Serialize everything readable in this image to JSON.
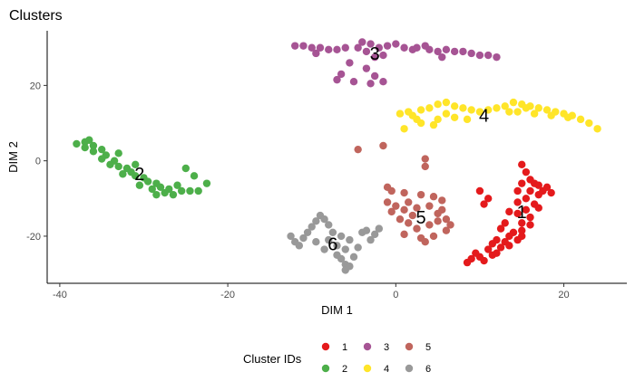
{
  "chart_data": {
    "type": "scatter",
    "title": "Clusters",
    "xlabel": "DIM 1",
    "ylabel": "DIM 2",
    "xlim": [
      -41.5,
      27.5
    ],
    "ylim": [
      -32.5,
      34.5
    ],
    "xticks": [
      -40,
      -20,
      0,
      20
    ],
    "yticks": [
      -20,
      0,
      20
    ],
    "xtick_labels": [
      "-40",
      "-20",
      "0",
      "20"
    ],
    "ytick_labels": [
      "-20",
      "0",
      "20"
    ],
    "grid": false,
    "legend": {
      "title": "Cluster IDs",
      "position": "bottom"
    },
    "clusters": [
      {
        "name": "1",
        "color": "#E41A1C",
        "label_pos": [
          15,
          -13.5
        ],
        "points": [
          [
            15.0,
            -1.0
          ],
          [
            15.5,
            -3.0
          ],
          [
            16.0,
            -5.0
          ],
          [
            17.0,
            -6.5
          ],
          [
            18.0,
            -7.0
          ],
          [
            18.5,
            -8.5
          ],
          [
            17.0,
            -9.0
          ],
          [
            16.0,
            -8.0
          ],
          [
            15.0,
            -6.0
          ],
          [
            14.5,
            -8.0
          ],
          [
            15.5,
            -10.0
          ],
          [
            16.5,
            -11.5
          ],
          [
            17.0,
            -12.5
          ],
          [
            15.5,
            -13.0
          ],
          [
            16.0,
            -15.0
          ],
          [
            15.0,
            -16.5
          ],
          [
            16.0,
            -17.0
          ],
          [
            15.0,
            -18.5
          ],
          [
            14.0,
            -19.0
          ],
          [
            13.5,
            -20.0
          ],
          [
            14.5,
            -21.0
          ],
          [
            13.0,
            -21.5
          ],
          [
            12.0,
            -21.0
          ],
          [
            12.5,
            -23.0
          ],
          [
            11.0,
            -23.5
          ],
          [
            11.5,
            -25.0
          ],
          [
            10.0,
            -25.5
          ],
          [
            10.5,
            -26.5
          ],
          [
            9.0,
            -26.0
          ],
          [
            8.5,
            -27.0
          ],
          [
            10.0,
            -8.0
          ],
          [
            11.0,
            -10.0
          ],
          [
            10.5,
            -11.5
          ],
          [
            13.5,
            -13.5
          ],
          [
            14.5,
            -14.0
          ],
          [
            12.5,
            -18.0
          ],
          [
            13.0,
            -16.5
          ],
          [
            11.5,
            -22.0
          ],
          [
            9.5,
            -24.5
          ],
          [
            17.5,
            -8.0
          ],
          [
            16.5,
            -6.0
          ],
          [
            14.5,
            -11.0
          ],
          [
            15.0,
            -20.0
          ],
          [
            12.0,
            -24.5
          ],
          [
            13.5,
            -22.5
          ]
        ]
      },
      {
        "name": "2",
        "color": "#4DAF4A",
        "label_pos": [
          -30.5,
          -3.5
        ],
        "points": [
          [
            -38.0,
            4.5
          ],
          [
            -37.0,
            5.0
          ],
          [
            -36.0,
            4.0
          ],
          [
            -37.0,
            3.5
          ],
          [
            -36.0,
            2.5
          ],
          [
            -35.0,
            3.0
          ],
          [
            -34.5,
            1.5
          ],
          [
            -35.0,
            0.5
          ],
          [
            -33.5,
            0.0
          ],
          [
            -34.0,
            -1.0
          ],
          [
            -33.0,
            -1.5
          ],
          [
            -32.0,
            -2.0
          ],
          [
            -31.5,
            -3.0
          ],
          [
            -32.5,
            -3.5
          ],
          [
            -31.0,
            -4.0
          ],
          [
            -30.0,
            -4.5
          ],
          [
            -29.5,
            -5.5
          ],
          [
            -28.5,
            -6.0
          ],
          [
            -28.0,
            -7.0
          ],
          [
            -27.0,
            -7.5
          ],
          [
            -27.5,
            -8.5
          ],
          [
            -26.5,
            -9.0
          ],
          [
            -25.5,
            -8.0
          ],
          [
            -24.5,
            -8.0
          ],
          [
            -23.5,
            -8.0
          ],
          [
            -22.5,
            -6.0
          ],
          [
            -25.0,
            -2.0
          ],
          [
            -24.0,
            -4.0
          ],
          [
            -29.0,
            -7.5
          ],
          [
            -30.5,
            -6.5
          ],
          [
            -36.5,
            5.5
          ],
          [
            -33.0,
            2.0
          ],
          [
            -31.0,
            -1.0
          ],
          [
            -26.0,
            -6.5
          ],
          [
            -28.5,
            -9.0
          ]
        ]
      },
      {
        "name": "3",
        "color": "#A65494",
        "label_pos": [
          -2.5,
          28.5
        ],
        "points": [
          [
            -12.0,
            30.5
          ],
          [
            -11.0,
            30.5
          ],
          [
            -10.0,
            30.0
          ],
          [
            -9.0,
            30.0
          ],
          [
            -8.0,
            29.5
          ],
          [
            -7.0,
            29.5
          ],
          [
            -9.5,
            28.5
          ],
          [
            -4.0,
            31.5
          ],
          [
            -3.0,
            31.0
          ],
          [
            -2.0,
            30.0
          ],
          [
            -1.0,
            30.5
          ],
          [
            0.0,
            31.0
          ],
          [
            1.0,
            30.0
          ],
          [
            2.0,
            29.5
          ],
          [
            -3.5,
            29.0
          ],
          [
            -4.5,
            30.0
          ],
          [
            -2.5,
            27.5
          ],
          [
            -1.5,
            28.0
          ],
          [
            -6.0,
            30.0
          ],
          [
            -5.5,
            26.0
          ],
          [
            -3.5,
            24.5
          ],
          [
            -2.5,
            22.5
          ],
          [
            -6.5,
            23.0
          ],
          [
            -5.0,
            21.0
          ],
          [
            -3.0,
            20.5
          ],
          [
            -1.5,
            21.0
          ],
          [
            -7.0,
            21.5
          ],
          [
            2.5,
            30.0
          ],
          [
            4.0,
            29.5
          ],
          [
            5.0,
            29.0
          ],
          [
            6.0,
            29.5
          ],
          [
            7.0,
            29.0
          ],
          [
            8.0,
            29.0
          ],
          [
            9.0,
            28.5
          ],
          [
            10.0,
            28.0
          ],
          [
            11.0,
            28.0
          ],
          [
            12.0,
            27.5
          ],
          [
            5.5,
            27.5
          ],
          [
            3.5,
            30.5
          ]
        ]
      },
      {
        "name": "4",
        "color": "#FFE529",
        "label_pos": [
          10.5,
          12
        ],
        "points": [
          [
            0.5,
            12.5
          ],
          [
            1.5,
            13.0
          ],
          [
            2.0,
            12.0
          ],
          [
            3.0,
            13.5
          ],
          [
            4.0,
            14.0
          ],
          [
            5.0,
            15.0
          ],
          [
            6.0,
            15.5
          ],
          [
            7.0,
            14.5
          ],
          [
            8.0,
            14.0
          ],
          [
            9.0,
            13.5
          ],
          [
            10.0,
            13.0
          ],
          [
            11.0,
            13.5
          ],
          [
            12.0,
            14.0
          ],
          [
            13.0,
            14.5
          ],
          [
            14.0,
            15.5
          ],
          [
            15.0,
            15.0
          ],
          [
            16.0,
            14.5
          ],
          [
            17.0,
            14.0
          ],
          [
            18.0,
            13.5
          ],
          [
            19.0,
            13.0
          ],
          [
            20.0,
            12.5
          ],
          [
            21.0,
            12.0
          ],
          [
            22.0,
            11.0
          ],
          [
            23.0,
            10.0
          ],
          [
            24.0,
            8.5
          ],
          [
            3.0,
            10.0
          ],
          [
            5.0,
            11.0
          ],
          [
            7.0,
            11.5
          ],
          [
            1.0,
            8.5
          ],
          [
            4.5,
            9.5
          ],
          [
            6.0,
            12.5
          ],
          [
            8.5,
            11.0
          ],
          [
            14.5,
            13.0
          ],
          [
            16.5,
            12.5
          ],
          [
            18.5,
            12.0
          ],
          [
            20.5,
            11.5
          ],
          [
            2.5,
            11.0
          ],
          [
            15.5,
            14.0
          ],
          [
            13.5,
            13.0
          ]
        ]
      },
      {
        "name": "5",
        "color": "#C0655D",
        "label_pos": [
          3,
          -15
        ],
        "points": [
          [
            -1.5,
            4.0
          ],
          [
            -4.5,
            3.0
          ],
          [
            3.5,
            0.5
          ],
          [
            3.5,
            -1.5
          ],
          [
            -1.0,
            -7.0
          ],
          [
            -0.5,
            -8.0
          ],
          [
            1.0,
            -8.5
          ],
          [
            3.0,
            -9.0
          ],
          [
            4.5,
            -9.5
          ],
          [
            5.5,
            -10.5
          ],
          [
            1.5,
            -11.0
          ],
          [
            0.0,
            -12.0
          ],
          [
            -0.5,
            -13.5
          ],
          [
            1.0,
            -13.0
          ],
          [
            2.5,
            -12.5
          ],
          [
            4.0,
            -12.0
          ],
          [
            5.5,
            -13.0
          ],
          [
            6.0,
            -15.5
          ],
          [
            5.0,
            -16.0
          ],
          [
            4.0,
            -17.0
          ],
          [
            2.5,
            -18.0
          ],
          [
            1.5,
            -16.5
          ],
          [
            0.5,
            -15.5
          ],
          [
            3.0,
            -20.5
          ],
          [
            4.5,
            -20.0
          ],
          [
            3.5,
            -21.5
          ],
          [
            6.0,
            -18.5
          ],
          [
            5.0,
            -14.0
          ],
          [
            2.0,
            -14.5
          ],
          [
            -1.0,
            -11.0
          ],
          [
            1.0,
            -19.5
          ],
          [
            6.5,
            -17.0
          ]
        ]
      },
      {
        "name": "6",
        "color": "#999999",
        "label_pos": [
          -7.5,
          -22
        ],
        "points": [
          [
            -12.5,
            -20.0
          ],
          [
            -12.0,
            -21.5
          ],
          [
            -11.0,
            -20.5
          ],
          [
            -11.5,
            -22.5
          ],
          [
            -10.5,
            -19.0
          ],
          [
            -10.0,
            -17.5
          ],
          [
            -9.5,
            -16.0
          ],
          [
            -9.0,
            -14.5
          ],
          [
            -8.5,
            -15.5
          ],
          [
            -8.0,
            -17.0
          ],
          [
            -7.5,
            -19.0
          ],
          [
            -8.0,
            -21.0
          ],
          [
            -7.0,
            -22.5
          ],
          [
            -6.0,
            -23.5
          ],
          [
            -7.0,
            -25.0
          ],
          [
            -6.5,
            -26.0
          ],
          [
            -6.0,
            -27.5
          ],
          [
            -6.0,
            -29.0
          ],
          [
            -5.5,
            -28.0
          ],
          [
            -5.0,
            -25.5
          ],
          [
            -4.5,
            -23.0
          ],
          [
            -5.5,
            -21.0
          ],
          [
            -4.0,
            -19.0
          ],
          [
            -3.5,
            -18.5
          ],
          [
            -2.5,
            -19.5
          ],
          [
            -2.0,
            -18.0
          ],
          [
            -3.0,
            -21.0
          ],
          [
            -9.5,
            -21.5
          ],
          [
            -8.5,
            -23.5
          ],
          [
            -6.5,
            -20.0
          ]
        ]
      }
    ]
  }
}
